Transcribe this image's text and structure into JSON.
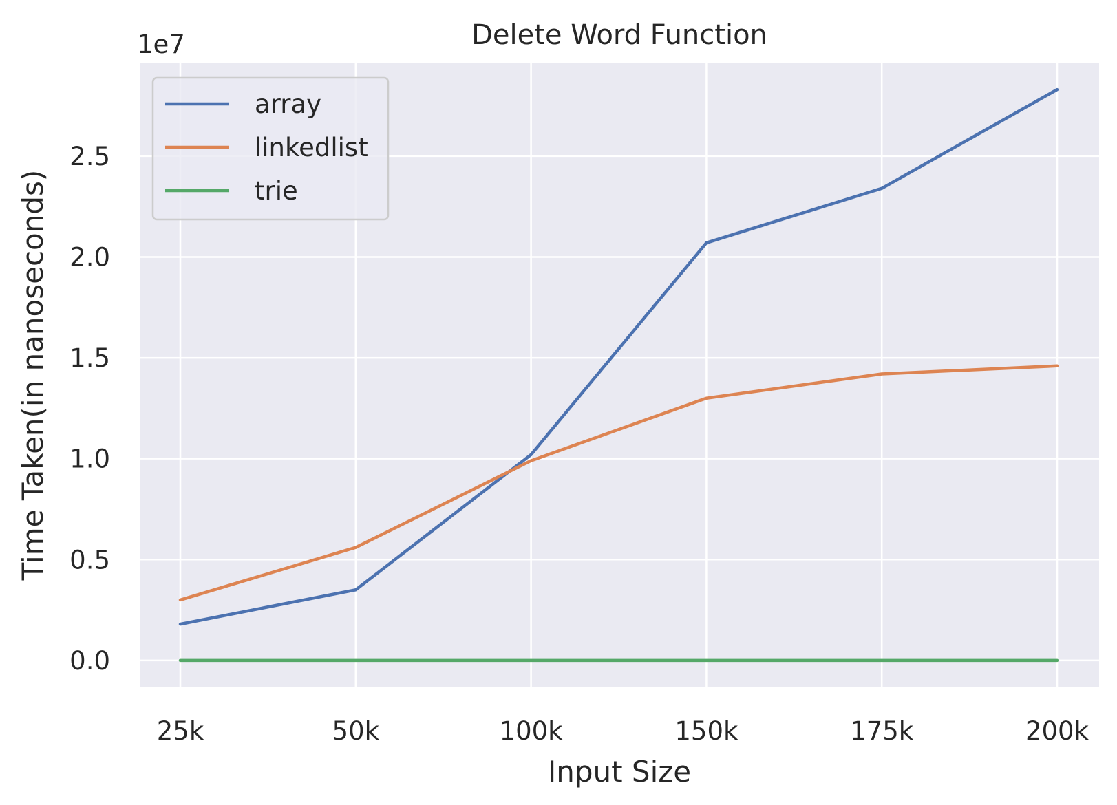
{
  "chart_data": {
    "type": "line",
    "title": "Delete Word Function",
    "xlabel": "Input Size",
    "ylabel": "Time Taken(in nanoseconds)",
    "y_offset_label": "1e7",
    "categories": [
      "25k",
      "50k",
      "100k",
      "150k",
      "175k",
      "200k"
    ],
    "yticks": [
      "0.0",
      "0.5",
      "1.0",
      "1.5",
      "2.0",
      "2.5"
    ],
    "ylim": [
      -0.13,
      2.96
    ],
    "y_scale_note": "values in units of 1e7 nanoseconds",
    "grid": true,
    "legend_position": "top-left",
    "series": [
      {
        "name": "array",
        "color": "#4C72B0",
        "values": [
          0.18,
          0.35,
          1.02,
          2.07,
          2.34,
          2.83
        ]
      },
      {
        "name": "linkedlist",
        "color": "#DD8452",
        "values": [
          0.3,
          0.56,
          0.99,
          1.3,
          1.42,
          1.46
        ]
      },
      {
        "name": "trie",
        "color": "#55A868",
        "values": [
          0.0,
          0.0,
          0.0,
          0.0,
          0.0,
          0.0
        ]
      }
    ],
    "colors": {
      "plot_background": "#EAEAF2",
      "grid": "#FFFFFF",
      "text": "#262626"
    }
  }
}
